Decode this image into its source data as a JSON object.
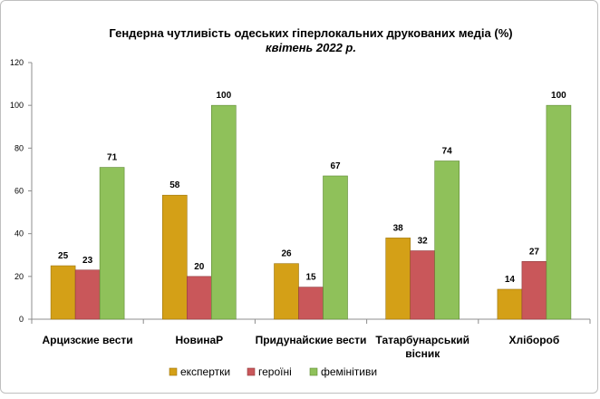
{
  "chart_data": {
    "type": "bar",
    "title": "Гендерна чутливість одеських гіперлокальних друкованих медіа (%)",
    "subtitle": "квітень 2022 р.",
    "categories": [
      [
        "Арцизские вести"
      ],
      [
        "НовинаР"
      ],
      [
        "Придунайские вести"
      ],
      [
        "Татарбунарський",
        "вісник"
      ],
      [
        "Хлібороб"
      ]
    ],
    "series": [
      {
        "name": "експертки",
        "color": "#d4a017",
        "stroke": "#9c7410",
        "values": [
          25,
          58,
          26,
          38,
          14
        ]
      },
      {
        "name": "героїні",
        "color": "#c9575a",
        "stroke": "#8f3a3c",
        "values": [
          23,
          20,
          15,
          32,
          27
        ]
      },
      {
        "name": "фемінітиви",
        "color": "#8fc15a",
        "stroke": "#5f8a35",
        "values": [
          71,
          100,
          67,
          74,
          100
        ]
      }
    ],
    "yticks": [
      0,
      20,
      40,
      60,
      80,
      100,
      120
    ],
    "ylim": [
      0,
      120
    ],
    "grid": false,
    "legend": "bottom"
  }
}
